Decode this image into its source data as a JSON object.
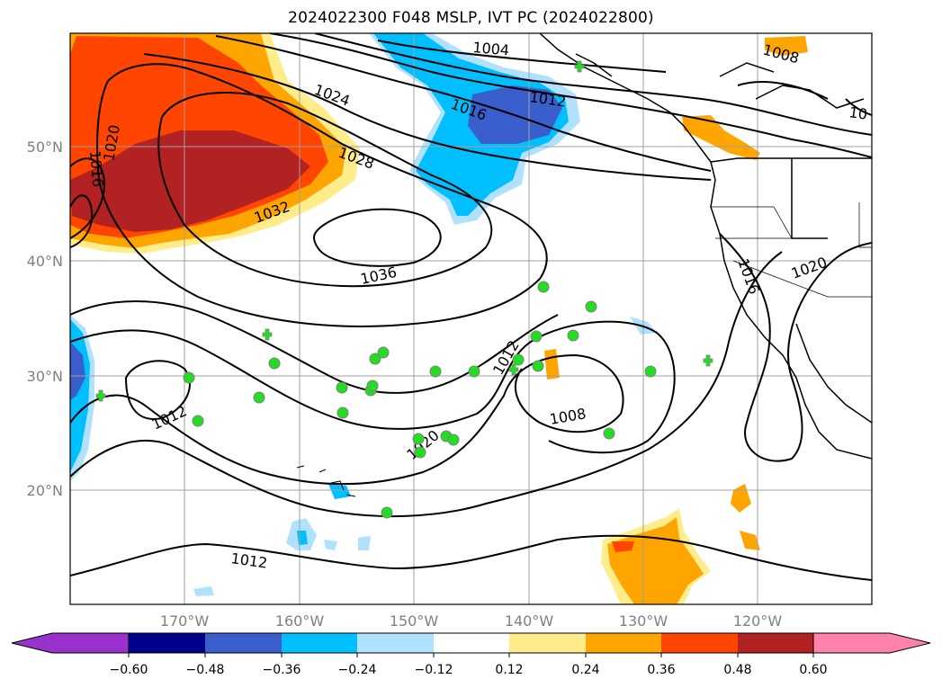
{
  "title": "2024022300 F048 MSLP, IVT PC (2024022800)",
  "map": {
    "lat_labels": [
      "50°N",
      "40°N",
      "30°N",
      "20°N"
    ],
    "lon_labels": [
      "170°W",
      "160°W",
      "150°W",
      "140°W",
      "130°W",
      "120°W"
    ],
    "isobar_labels": [
      "1004",
      "1012",
      "1016",
      "1024",
      "1028",
      "1032",
      "1036",
      "1016",
      "1020",
      "1012",
      "1008",
      "1012",
      "1020",
      "1016",
      "1020",
      "1012",
      "1008",
      "10"
    ]
  },
  "colorbar": {
    "ticks": [
      "−0.60",
      "−0.48",
      "−0.36",
      "−0.24",
      "−0.12",
      "0.12",
      "0.24",
      "0.36",
      "0.48",
      "0.60"
    ],
    "colors": [
      "#9932cc",
      "#00008b",
      "#3a5fcd",
      "#00bfff",
      "#b0e2ff",
      "#ffffff",
      "#ffec8b",
      "#ffa500",
      "#ff4500",
      "#b22222",
      "#ff82ab"
    ]
  }
}
